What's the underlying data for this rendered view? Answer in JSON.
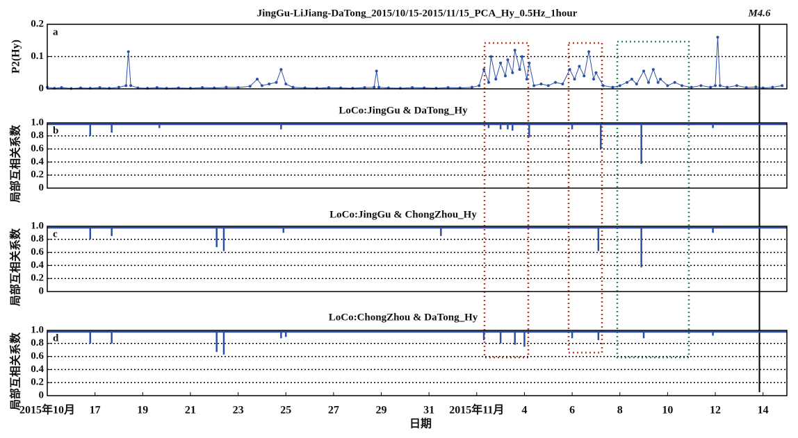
{
  "chart_data": [
    {
      "type": "line",
      "title": "JingGu-LiJiang-DaTong_2015/10/15-2015/11/15_PCA_Hy_0.5Hz_1hour",
      "label": "a",
      "ylabel": "P2(Hy)",
      "color": "#2b50a8",
      "xlim": [
        15,
        46
      ],
      "ylim": [
        0,
        0.2
      ],
      "yticks": [
        0,
        0.1,
        0.2
      ],
      "grid": true,
      "event": {
        "label": "M4.6",
        "x": 44.85
      },
      "x": [
        15,
        15.3,
        15.6,
        16,
        16.4,
        16.8,
        17.2,
        17.6,
        18,
        18.3,
        18.4,
        18.5,
        18.8,
        19.2,
        19.6,
        20,
        20.5,
        21,
        21.5,
        22,
        22.5,
        23,
        23.5,
        23.8,
        24,
        24.3,
        24.6,
        24.8,
        25,
        25.3,
        25.8,
        26.3,
        26.8,
        27.3,
        27.8,
        28.3,
        28.7,
        28.8,
        28.9,
        29.3,
        29.8,
        30.3,
        30.8,
        31.3,
        31.8,
        32.3,
        32.8,
        33.1,
        33.3,
        33.5,
        33.6,
        33.8,
        34,
        34.2,
        34.3,
        34.5,
        34.6,
        34.8,
        34.9,
        35.1,
        35.2,
        35.4,
        35.7,
        36,
        36.3,
        36.6,
        36.9,
        37.1,
        37.3,
        37.5,
        37.7,
        37.9,
        38,
        38.3,
        38.7,
        39,
        39.3,
        39.5,
        39.7,
        40,
        40.2,
        40.4,
        40.6,
        40.7,
        41,
        41.3,
        41.6,
        42,
        42.4,
        42.8,
        43,
        43.1,
        43.2,
        43.5,
        43.9,
        44.3,
        44.7,
        45,
        45.4,
        45.8
      ],
      "values": [
        0.005,
        0.002,
        0.004,
        0.001,
        0.003,
        0.002,
        0.004,
        0.002,
        0.005,
        0.01,
        0.115,
        0.01,
        0.003,
        0.002,
        0.004,
        0.002,
        0.003,
        0.002,
        0.004,
        0.003,
        0.005,
        0.004,
        0.008,
        0.03,
        0.01,
        0.015,
        0.02,
        0.06,
        0.015,
        0.005,
        0.003,
        0.002,
        0.004,
        0.003,
        0.002,
        0.004,
        0.005,
        0.055,
        0.005,
        0.003,
        0.002,
        0.004,
        0.003,
        0.002,
        0.004,
        0.003,
        0.005,
        0.01,
        0.06,
        0.02,
        0.1,
        0.03,
        0.08,
        0.04,
        0.09,
        0.05,
        0.12,
        0.06,
        0.1,
        0.03,
        0.08,
        0.01,
        0.015,
        0.01,
        0.02,
        0.015,
        0.06,
        0.03,
        0.07,
        0.04,
        0.115,
        0.03,
        0.05,
        0.01,
        0.005,
        0.01,
        0.02,
        0.03,
        0.015,
        0.055,
        0.02,
        0.06,
        0.02,
        0.03,
        0.01,
        0.02,
        0.01,
        0.005,
        0.01,
        0.005,
        0.01,
        0.16,
        0.01,
        0.005,
        0.01,
        0.004,
        0.006,
        0.003,
        0.005,
        0.01
      ]
    },
    {
      "type": "stem",
      "title": "LoCo:JingGu & DaTong_Hy",
      "label": "b",
      "ylabel": "局部互相关系数",
      "color": "#2b50a8",
      "xlim": [
        15,
        46
      ],
      "ylim": [
        0,
        1
      ],
      "yticks": [
        0,
        {
          "value": 0.2,
          "label": "0.2"
        },
        {
          "value": 0.4,
          "label": "0.4"
        },
        {
          "value": 0.6,
          "label": "0.6"
        },
        {
          "value": 0.8,
          "label": "0.8"
        },
        {
          "value": 1,
          "label": "1.0"
        }
      ],
      "grid": true,
      "x": [
        16.8,
        17.7,
        19.7,
        24.8,
        33.5,
        34,
        34.3,
        34.5,
        35.2,
        37,
        38.2,
        39.9,
        42.9
      ],
      "values": [
        0.8,
        0.85,
        0.92,
        0.9,
        0.92,
        0.9,
        0.9,
        0.88,
        0.78,
        0.9,
        0.6,
        0.37,
        0.92
      ]
    },
    {
      "type": "stem",
      "title": "LoCo:JingGu & ChongZhou_Hy",
      "label": "c",
      "ylabel": "局部互相关系数",
      "color": "#2b50a8",
      "xlim": [
        15,
        46
      ],
      "ylim": [
        0,
        1
      ],
      "yticks": [
        0,
        {
          "value": 0.2,
          "label": "0.2"
        },
        {
          "value": 0.4,
          "label": "0.4"
        },
        {
          "value": 0.6,
          "label": "0.6"
        },
        {
          "value": 0.8,
          "label": "0.8"
        },
        {
          "value": 1,
          "label": "1.0"
        }
      ],
      "grid": true,
      "x": [
        16.8,
        17.7,
        22.1,
        22.4,
        24.9,
        31.5,
        38.1,
        39.9,
        42.9
      ],
      "values": [
        0.8,
        0.85,
        0.68,
        0.62,
        0.9,
        0.85,
        0.62,
        0.37,
        0.9
      ]
    },
    {
      "type": "stem",
      "title": "LoCo:ChongZhou & DaTong_Hy",
      "label": "d",
      "ylabel": "局部互相关系数",
      "xlabel": "日期",
      "color": "#2b50a8",
      "xlim": [
        15,
        46
      ],
      "ylim": [
        0,
        1
      ],
      "yticks": [
        0,
        {
          "value": 0.2,
          "label": "0.2"
        },
        {
          "value": 0.4,
          "label": "0.4"
        },
        {
          "value": 0.6,
          "label": "0.6"
        },
        {
          "value": 0.8,
          "label": "0.8"
        },
        {
          "value": 1,
          "label": "1.0"
        }
      ],
      "grid": true,
      "xticks": [
        {
          "value": 15,
          "label": "2015年10月"
        },
        17,
        19,
        21,
        23,
        25,
        27,
        29,
        31,
        {
          "value": 33,
          "label": "2015年11月"
        },
        {
          "value": 35,
          "label": "4"
        },
        {
          "value": 37,
          "label": "6"
        },
        {
          "value": 39,
          "label": "8"
        },
        {
          "value": 41,
          "label": "10"
        },
        {
          "value": 43,
          "label": "12"
        },
        {
          "value": 45,
          "label": "14"
        }
      ],
      "x": [
        16.8,
        17.7,
        22.1,
        22.4,
        24.8,
        25,
        33.3,
        34,
        34.6,
        35,
        37,
        38.1,
        40,
        42.9
      ],
      "values": [
        0.8,
        0.8,
        0.67,
        0.63,
        0.88,
        0.9,
        0.85,
        0.8,
        0.78,
        0.75,
        0.88,
        0.85,
        0.88,
        0.92
      ]
    }
  ]
}
